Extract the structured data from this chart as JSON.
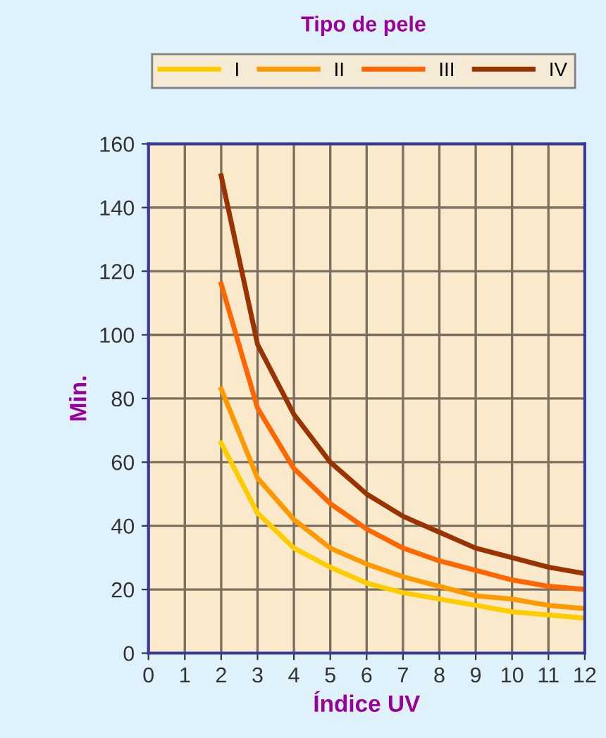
{
  "chart_data": {
    "type": "line",
    "legend_title": "Tipo de pele",
    "xlabel": "Índice UV",
    "ylabel": "Min.",
    "x": [
      2,
      3,
      4,
      5,
      6,
      7,
      8,
      9,
      10,
      11,
      12
    ],
    "series": [
      {
        "name": "I",
        "color": "#ffcc00",
        "values": [
          66,
          44,
          33,
          27,
          22,
          19,
          17,
          15,
          13,
          12,
          11
        ]
      },
      {
        "name": "II",
        "color": "#ff9900",
        "values": [
          83,
          55,
          42,
          33,
          28,
          24,
          21,
          18,
          17,
          15,
          14
        ]
      },
      {
        "name": "III",
        "color": "#ff6600",
        "values": [
          116,
          77,
          58,
          47,
          39,
          33,
          29,
          26,
          23,
          21,
          20
        ]
      },
      {
        "name": "IV",
        "color": "#993300",
        "values": [
          150,
          97,
          75,
          60,
          50,
          43,
          38,
          33,
          30,
          27,
          25
        ]
      }
    ],
    "xlim": [
      0,
      12
    ],
    "xticks": [
      0,
      1,
      2,
      3,
      4,
      5,
      6,
      7,
      8,
      9,
      10,
      11,
      12
    ],
    "ylim": [
      0,
      160
    ],
    "yticks": [
      0,
      20,
      40,
      60,
      80,
      100,
      120,
      140,
      160
    ],
    "grid": true,
    "legend": "top",
    "marker": "none",
    "line_style": "solid"
  }
}
